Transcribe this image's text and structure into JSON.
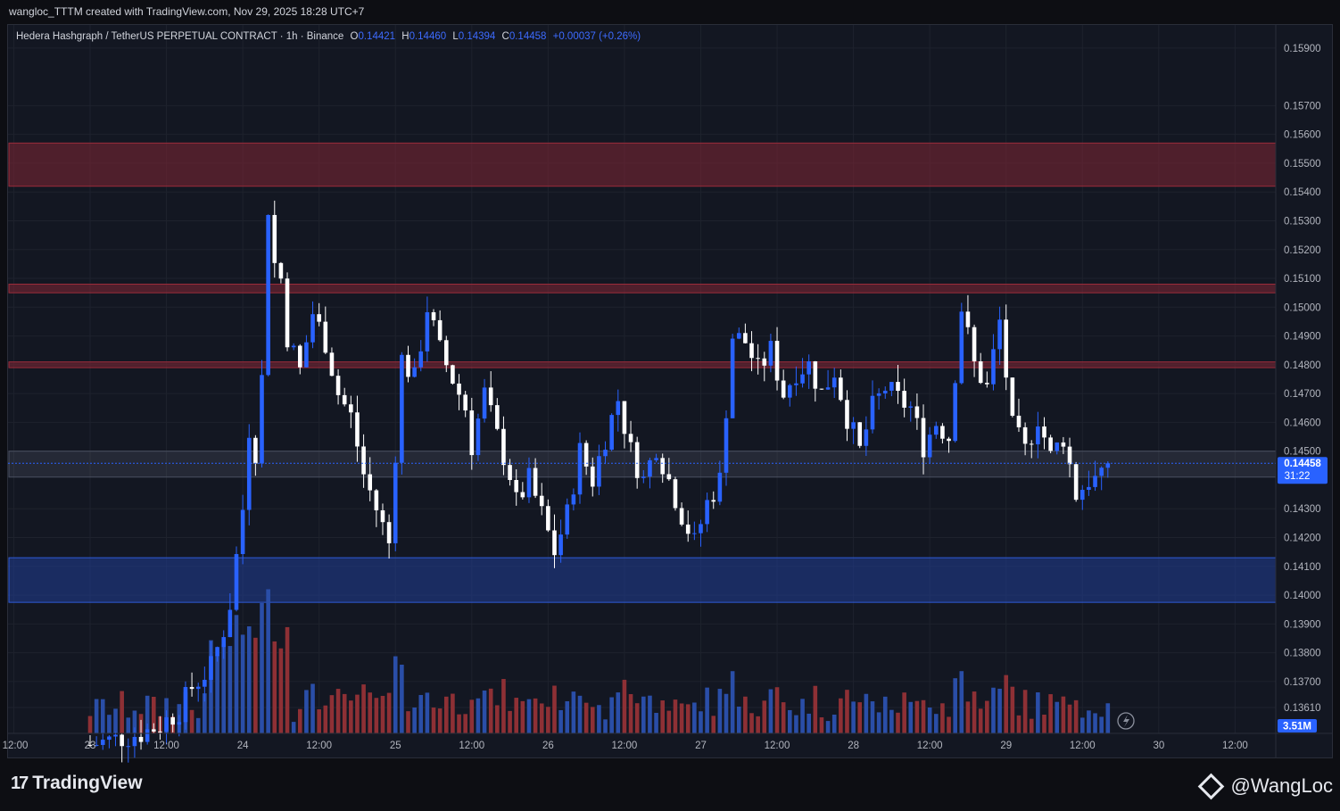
{
  "caption": "wangloc_TTTM created with TradingView.com, Nov 29, 2025 18:28 UTC+7",
  "legend": {
    "symbol": "Hedera Hashgraph / TetherUS PERPETUAL CONTRACT · 1h · Binance",
    "o_label": "O",
    "o": "0.14421",
    "h_label": "H",
    "h": "0.14460",
    "l_label": "L",
    "l": "0.14394",
    "c_label": "C",
    "c": "0.14458",
    "change": "+0.00037 (+0.26%)"
  },
  "price_badge": {
    "price": "0.14458",
    "countdown": "31:22"
  },
  "volume_badge": "3.51M",
  "footer": {
    "logo": "TradingView",
    "brand": "@WangLoc"
  },
  "colors": {
    "up": "#2962ff",
    "down": "#ffffff",
    "vol_up": "#2a4ea8",
    "vol_down": "#8e3035",
    "resist": "#5c2430",
    "support": "#1e3a8a",
    "background": "#131722"
  },
  "chart_data": {
    "type": "candlestick",
    "ylim": [
      0.1352,
      0.1598
    ],
    "y_ticks": [
      "0.15900",
      "0.15700",
      "0.15600",
      "0.15500",
      "0.15400",
      "0.15300",
      "0.15200",
      "0.15100",
      "0.15000",
      "0.14900",
      "0.14800",
      "0.14700",
      "0.14600",
      "0.14500",
      "0.14300",
      "0.14200",
      "0.14100",
      "0.14000",
      "0.13900",
      "0.13800",
      "0.13700",
      "0.13610"
    ],
    "x_ticks": [
      {
        "label": "12:00",
        "hour": -12
      },
      {
        "label": "23",
        "hour": 0
      },
      {
        "label": "12:00",
        "hour": 12
      },
      {
        "label": "24",
        "hour": 24
      },
      {
        "label": "12:00",
        "hour": 36
      },
      {
        "label": "25",
        "hour": 48
      },
      {
        "label": "12:00",
        "hour": 60
      },
      {
        "label": "26",
        "hour": 72
      },
      {
        "label": "12:00",
        "hour": 84
      },
      {
        "label": "27",
        "hour": 96
      },
      {
        "label": "12:00",
        "hour": 108
      },
      {
        "label": "28",
        "hour": 120
      },
      {
        "label": "12:00",
        "hour": 132
      },
      {
        "label": "29",
        "hour": 144
      },
      {
        "label": "12:00",
        "hour": 156
      },
      {
        "label": "30",
        "hour": 168
      },
      {
        "label": "12:00",
        "hour": 180
      }
    ],
    "zones": [
      {
        "type": "resistance",
        "from": 0.1542,
        "to": 0.1557
      },
      {
        "type": "resistance",
        "from": 0.1505,
        "to": 0.1508
      },
      {
        "type": "resistance",
        "from": 0.1479,
        "to": 0.1481
      },
      {
        "type": "current",
        "from": 0.1441,
        "to": 0.145
      },
      {
        "type": "support",
        "from": 0.13975,
        "to": 0.1413
      }
    ],
    "last_price": 0.14458,
    "waypoints": [
      [
        0,
        0.1348
      ],
      [
        8,
        0.1352
      ],
      [
        11,
        0.1355
      ],
      [
        14,
        0.136
      ],
      [
        16,
        0.1368
      ],
      [
        19,
        0.1375
      ],
      [
        21,
        0.1388
      ],
      [
        22,
        0.1397
      ],
      [
        24,
        0.143
      ],
      [
        25,
        0.1458
      ],
      [
        26,
        0.145
      ],
      [
        27,
        0.1475
      ],
      [
        28,
        0.1535
      ],
      [
        29,
        0.1515
      ],
      [
        30,
        0.151
      ],
      [
        31,
        0.149
      ],
      [
        33,
        0.1478
      ],
      [
        35,
        0.1498
      ],
      [
        37,
        0.1488
      ],
      [
        39,
        0.147
      ],
      [
        41,
        0.1462
      ],
      [
        43,
        0.1442
      ],
      [
        45,
        0.143
      ],
      [
        47,
        0.1418
      ],
      [
        49,
        0.1482
      ],
      [
        51,
        0.1475
      ],
      [
        53,
        0.15
      ],
      [
        55,
        0.1485
      ],
      [
        57,
        0.1475
      ],
      [
        59,
        0.1465
      ],
      [
        60,
        0.1452
      ],
      [
        62,
        0.147
      ],
      [
        64,
        0.1455
      ],
      [
        66,
        0.1442
      ],
      [
        67,
        0.1432
      ],
      [
        69,
        0.144
      ],
      [
        71,
        0.1428
      ],
      [
        73,
        0.1415
      ],
      [
        75,
        0.1428
      ],
      [
        77,
        0.145
      ],
      [
        79,
        0.144
      ],
      [
        81,
        0.1455
      ],
      [
        83,
        0.1468
      ],
      [
        85,
        0.145
      ],
      [
        87,
        0.144
      ],
      [
        89,
        0.1452
      ],
      [
        91,
        0.144
      ],
      [
        93,
        0.1428
      ],
      [
        95,
        0.1418
      ],
      [
        97,
        0.1432
      ],
      [
        99,
        0.144
      ],
      [
        101,
        0.149
      ],
      [
        103,
        0.1488
      ],
      [
        105,
        0.1478
      ],
      [
        107,
        0.1485
      ],
      [
        109,
        0.147
      ],
      [
        111,
        0.1478
      ],
      [
        113,
        0.148
      ],
      [
        115,
        0.147
      ],
      [
        117,
        0.1478
      ],
      [
        119,
        0.1462
      ],
      [
        121,
        0.145
      ],
      [
        123,
        0.1465
      ],
      [
        125,
        0.1472
      ],
      [
        127,
        0.1468
      ],
      [
        129,
        0.1465
      ],
      [
        131,
        0.1452
      ],
      [
        133,
        0.146
      ],
      [
        135,
        0.1455
      ],
      [
        137,
        0.15
      ],
      [
        139,
        0.148
      ],
      [
        141,
        0.1472
      ],
      [
        143,
        0.1495
      ],
      [
        145,
        0.1458
      ],
      [
        147,
        0.145
      ],
      [
        149,
        0.1462
      ],
      [
        151,
        0.1448
      ],
      [
        153,
        0.1455
      ],
      [
        155,
        0.1435
      ],
      [
        157,
        0.144
      ],
      [
        159,
        0.144
      ],
      [
        160,
        0.1446
      ]
    ]
  }
}
